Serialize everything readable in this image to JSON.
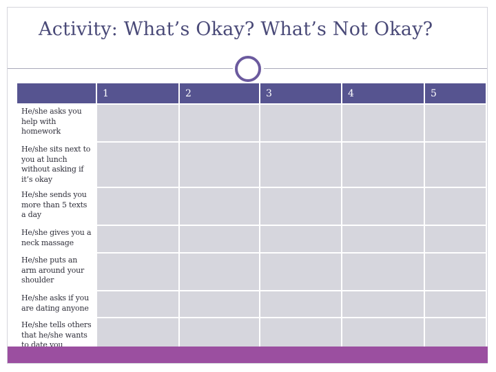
{
  "title": "Activity: What’s Okay? What’s Not Okay?",
  "columns": [
    "1",
    "2",
    "3",
    "4",
    "5"
  ],
  "rows": [
    "He/she asks you help with homework",
    "He/she sits next to you at lunch without asking if it’s okay",
    "He/she sends you more than 5 texts a day",
    "He/she gives you a neck massage",
    "He/she puts an arm around your shoulder",
    "He/she asks if you are dating anyone",
    "He/she tells others that he/she wants to date you"
  ],
  "colors": {
    "header": "#565490",
    "cell": "#d6d6dd",
    "footer": "#9b4fa0",
    "title": "#4a4a78",
    "ring": "#6b5a9e"
  }
}
